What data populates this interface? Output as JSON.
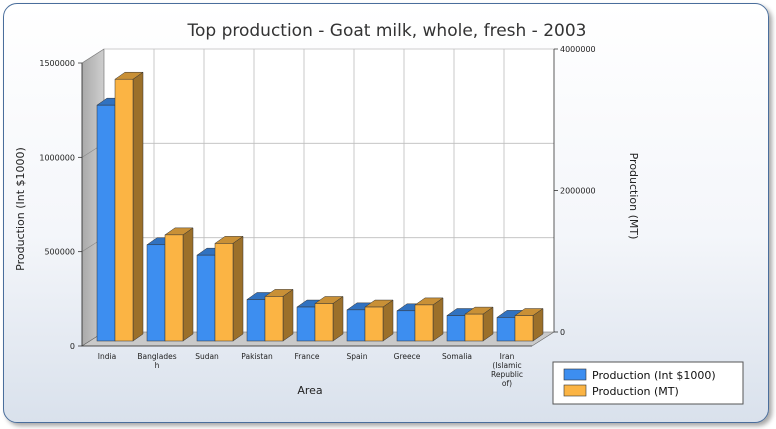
{
  "chart_data": {
    "type": "bar",
    "title": "Top production - Goat milk, whole, fresh - 2003",
    "xlabel": "Area",
    "ylabel_left": "Production (Int $1000)",
    "ylabel_right": "Production (MT)",
    "ylim_left": [
      0,
      1500000
    ],
    "ylim_right": [
      0,
      4000000
    ],
    "yticks_left": [
      "0",
      "500000",
      "1000000",
      "1500000"
    ],
    "yticks_right": [
      "0",
      "2000000",
      "4000000"
    ],
    "categories": [
      [
        "India"
      ],
      [
        "Banglades",
        "h"
      ],
      [
        "Sudan"
      ],
      [
        "Pakistan"
      ],
      [
        "France"
      ],
      [
        "Spain"
      ],
      [
        "Greece"
      ],
      [
        "Somalia"
      ],
      [
        "Iran",
        "(Islamic",
        "Republic",
        "of)"
      ]
    ],
    "series": [
      {
        "name": "Production (Int $1000)",
        "axis": "left",
        "color": "#3d8ef0",
        "values": [
          1250000,
          510000,
          455000,
          220000,
          180000,
          165000,
          160000,
          135000,
          125000
        ]
      },
      {
        "name": "Production (MT)",
        "axis": "right",
        "color": "#fbb444",
        "values": [
          3700000,
          1500000,
          1380000,
          630000,
          530000,
          480000,
          510000,
          380000,
          360000
        ]
      }
    ],
    "grid": true,
    "legend": "bottom-right"
  }
}
